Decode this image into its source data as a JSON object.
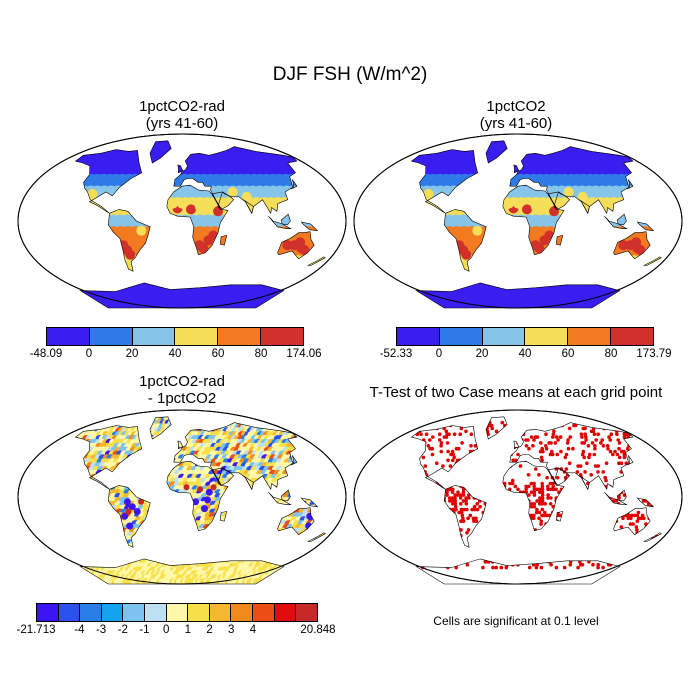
{
  "title": "DJF FSH (W/m^2)",
  "panels": [
    {
      "title_line1": "1pctCO2-rad",
      "title_line2": "(yrs 41-60)"
    },
    {
      "title_line1": "1pctCO2",
      "title_line2": "(yrs 41-60)"
    },
    {
      "title_line1": "1pctCO2-rad",
      "title_line2": "- 1pctCO2"
    },
    {
      "title_line1": "T-Test of two Case means at each grid point",
      "title_line2": ""
    }
  ],
  "colorbars": [
    {
      "colors": [
        "#3a1ef0",
        "#2e7be8",
        "#86c4ea",
        "#f6df58",
        "#f27a21",
        "#d2302b"
      ],
      "labels": [
        "-48.09",
        "0",
        "20",
        "40",
        "60",
        "80",
        "174.06"
      ]
    },
    {
      "colors": [
        "#3a1ef0",
        "#2e7be8",
        "#86c4ea",
        "#f6df58",
        "#f27a21",
        "#d2302b"
      ],
      "labels": [
        "-52.33",
        "0",
        "20",
        "40",
        "60",
        "80",
        "173.79"
      ]
    },
    {
      "colors": [
        "#3b16f3",
        "#2c51ee",
        "#2a7ee8",
        "#15a4f0",
        "#7ec3ef",
        "#bfe0f3",
        "#fff8a8",
        "#f8e04a",
        "#f5b830",
        "#f08a1a",
        "#ed4d16",
        "#e20c0c",
        "#c72828"
      ],
      "labels": [
        "-21.713",
        "-4",
        "-3",
        "-2",
        "-1",
        "0",
        "1",
        "2",
        "3",
        "4",
        "20.848"
      ]
    }
  ],
  "footnote": "Cells are significant at 0.1 level",
  "colors": {
    "land_default": "#86c4ea",
    "significant": "#e30000"
  }
}
